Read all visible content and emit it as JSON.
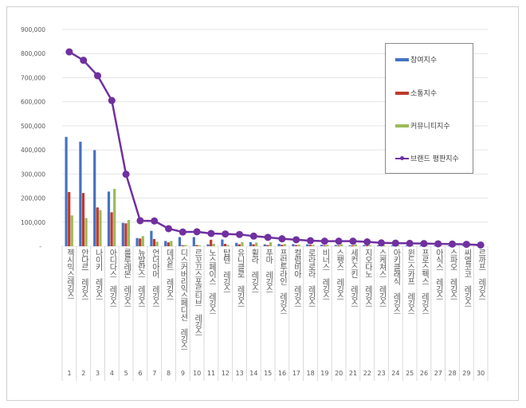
{
  "chart_data": {
    "type": "bar+line",
    "title": "",
    "xlabel": "",
    "ylabel": "",
    "ylim": [
      0,
      900000
    ],
    "yticks": [
      "-",
      "100,000",
      "200,000",
      "300,000",
      "400,000",
      "500,000",
      "600,000",
      "700,000",
      "800,000",
      "900,000"
    ],
    "grid": true,
    "legend_position": "top-right",
    "categories": [
      "젝시믹스레깅스",
      "안다르 레깅스",
      "나이키 레깅스",
      "아디다스 레깅스",
      "룰루레몬 레깅스",
      "뉴발란스 레깅스",
      "언더아머 레깅스",
      "데상트 레깅스",
      "디스커버리익스페디션 레깅스",
      "르꼬끄스포르티브 레깅스",
      "노스페이스 레깅스",
      "탑텐 레깅스",
      "유니클로 레깅스",
      "휠라 레깅스",
      "푸마 레깅스",
      "프런투라인 레깅스",
      "컬럼비아 레깅스",
      "로라로라 레깅스",
      "비너스 레깅스",
      "스팽스 레깅스",
      "세컨스킨 레깅스",
      "지오다노 레깅스",
      "스케쳐스 레깅스",
      "아키클래식 레깅스",
      "윈드스카프 레깅스",
      "프로스펙스 레깅스",
      "아식스 레깅스",
      "스파오 레깅스",
      "씨엘코코 레깅스",
      "르까프 레깅스"
    ],
    "ranks": [
      "1",
      "2",
      "3",
      "4",
      "5",
      "6",
      "7",
      "8",
      "9",
      "10",
      "11",
      "12",
      "13",
      "14",
      "15",
      "16",
      "17",
      "18",
      "19",
      "20",
      "21",
      "22",
      "23",
      "24",
      "25",
      "26",
      "27",
      "28",
      "29",
      "30"
    ],
    "series": [
      {
        "name": "참여지수",
        "type": "bar",
        "color": "#4472C4",
        "values": [
          454000,
          434000,
          399000,
          227000,
          97000,
          34000,
          64000,
          22000,
          38000,
          38000,
          8000,
          28000,
          14000,
          17000,
          8000,
          10000,
          9000,
          8000,
          6000,
          5000,
          4000,
          5000,
          4000,
          4000,
          3000,
          3000,
          3000,
          3000,
          2000,
          2000
        ]
      },
      {
        "name": "소통지수",
        "type": "bar",
        "color": "#C0392B",
        "values": [
          225000,
          221000,
          161000,
          141000,
          95000,
          32000,
          30000,
          16000,
          4000,
          5000,
          27000,
          10000,
          8000,
          8000,
          5000,
          6000,
          5000,
          6000,
          4000,
          4000,
          4000,
          3000,
          3000,
          3000,
          3000,
          3000,
          2000,
          2000,
          2000,
          1000
        ]
      },
      {
        "name": "커뮤니티지수",
        "type": "bar",
        "color": "#9BBB59",
        "values": [
          128000,
          117000,
          150000,
          238000,
          109000,
          42000,
          19000,
          22000,
          5000,
          4000,
          10000,
          5000,
          17000,
          15000,
          16000,
          9000,
          7000,
          6000,
          6000,
          8000,
          8000,
          5000,
          4000,
          4000,
          4000,
          3000,
          3000,
          2000,
          2000,
          1000
        ]
      },
      {
        "name": "브랜드 평판지수",
        "type": "line",
        "color": "#7030A0",
        "values": [
          807000,
          772000,
          708000,
          605000,
          299000,
          106000,
          105000,
          73000,
          59000,
          60000,
          53000,
          51000,
          49000,
          42000,
          37000,
          31000,
          27000,
          23000,
          21000,
          21000,
          21000,
          18000,
          14000,
          13000,
          12000,
          11000,
          10000,
          9000,
          8000,
          5000
        ]
      }
    ]
  }
}
